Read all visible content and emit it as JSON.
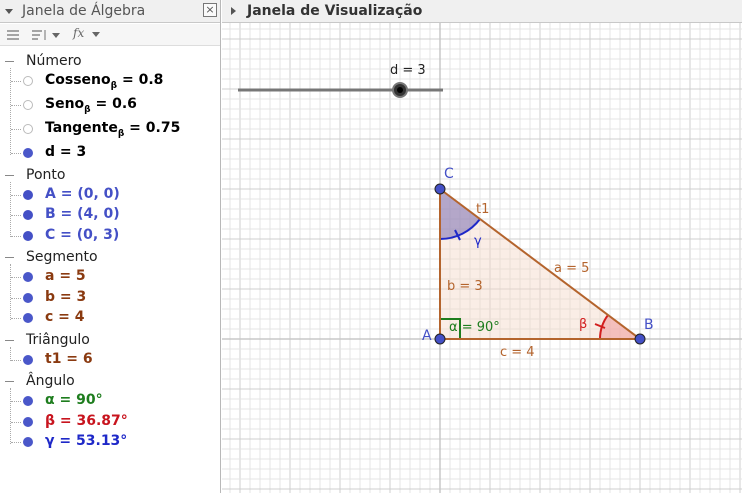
{
  "algebra": {
    "title": "Janela de Álgebra",
    "close_glyph": "×",
    "toolbar": {
      "fx": "fx"
    },
    "categories": [
      {
        "label": "Número",
        "items": [
          {
            "text": "Cosseno",
            "sub": "β",
            "tail": " = 0.8",
            "color": "#000000",
            "visible": false
          },
          {
            "text": "Seno",
            "sub": "β",
            "tail": " = 0.6",
            "color": "#000000",
            "visible": false
          },
          {
            "text": "Tangente",
            "sub": "β",
            "tail": " = 0.75",
            "color": "#000000",
            "visible": false
          },
          {
            "text": "d = 3",
            "sub": "",
            "tail": "",
            "color": "#000000",
            "visible": true,
            "dot": "#4a57c9"
          }
        ]
      },
      {
        "label": "Ponto",
        "items": [
          {
            "text": "A = (0, 0)",
            "sub": "",
            "tail": "",
            "color": "#4450c6",
            "visible": true,
            "dot": "#4450c6"
          },
          {
            "text": "B = (4, 0)",
            "sub": "",
            "tail": "",
            "color": "#4450c6",
            "visible": true,
            "dot": "#4450c6"
          },
          {
            "text": "C = (0, 3)",
            "sub": "",
            "tail": "",
            "color": "#4450c6",
            "visible": true,
            "dot": "#4450c6"
          }
        ]
      },
      {
        "label": "Segmento",
        "items": [
          {
            "text": "a = 5",
            "sub": "",
            "tail": "",
            "color": "#8a3a10",
            "visible": true,
            "dot": "#4a57c9"
          },
          {
            "text": "b = 3",
            "sub": "",
            "tail": "",
            "color": "#8a3a10",
            "visible": true,
            "dot": "#4a57c9"
          },
          {
            "text": "c = 4",
            "sub": "",
            "tail": "",
            "color": "#8a3a10",
            "visible": true,
            "dot": "#4a57c9"
          }
        ]
      },
      {
        "label": "Triângulo",
        "items": [
          {
            "text": "t1 = 6",
            "sub": "",
            "tail": "",
            "color": "#8a3a10",
            "visible": true,
            "dot": "#4a57c9"
          }
        ]
      },
      {
        "label": "Ângulo",
        "items": [
          {
            "text": "α = 90°",
            "sub": "",
            "tail": "",
            "color": "#1e7d1e",
            "visible": true,
            "dot": "#4a57c9"
          },
          {
            "text": "β = 36.87°",
            "sub": "",
            "tail": "",
            "color": "#c8141e",
            "visible": true,
            "dot": "#4a57c9"
          },
          {
            "text": "γ = 53.13°",
            "sub": "",
            "tail": "",
            "color": "#1e28c8",
            "visible": true,
            "dot": "#4a57c9"
          }
        ]
      }
    ]
  },
  "graphics": {
    "title": "Janela de Visualização",
    "slider": {
      "label": "d = 3",
      "value": 3
    },
    "points": {
      "A": "A",
      "B": "B",
      "C": "C"
    },
    "labels": {
      "t1": "t1",
      "a": "a = 5",
      "b": "b = 3",
      "c": "c = 4",
      "alpha": "α = 90°",
      "beta": "β",
      "gamma": "γ"
    },
    "colors": {
      "point": "#4450c6",
      "segment": "#b4642d",
      "fill": "#f3d6c8",
      "right_angle": "#1e7d1e",
      "beta": "#d21e1e",
      "gamma": "#1e28c8",
      "gamma_fill": "#7a6db0",
      "beta_fill": "#f0a0a0",
      "grid": "#e4e4e4",
      "axis": "#c8c8c8"
    }
  }
}
